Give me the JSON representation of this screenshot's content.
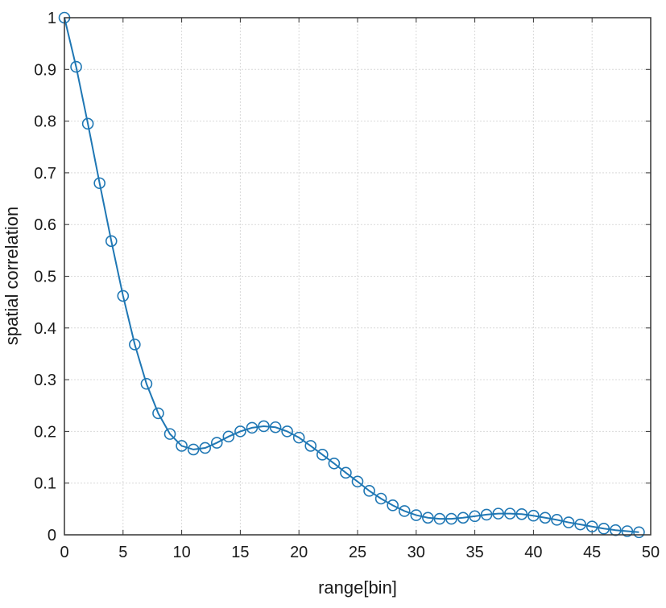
{
  "chart_data": {
    "type": "line",
    "title": "",
    "xlabel": "range[bin]",
    "ylabel": "spatial correlation",
    "xlim": [
      0,
      50
    ],
    "ylim": [
      0,
      1
    ],
    "grid": true,
    "legend": "none",
    "marker": "circle",
    "xticks": [
      0,
      5,
      10,
      15,
      20,
      25,
      30,
      35,
      40,
      45,
      50
    ],
    "yticks": [
      0,
      0.1,
      0.2,
      0.3,
      0.4,
      0.5,
      0.6,
      0.7,
      0.8,
      0.9,
      1
    ],
    "xtick_labels": [
      "0",
      "5",
      "10",
      "15",
      "20",
      "25",
      "30",
      "35",
      "40",
      "45",
      "50"
    ],
    "ytick_labels": [
      "0",
      "0.1",
      "0.2",
      "0.3",
      "0.4",
      "0.5",
      "0.6",
      "0.7",
      "0.8",
      "0.9",
      "1"
    ],
    "series": [
      {
        "color": "#1f77b4",
        "x": [
          0,
          1,
          2,
          3,
          4,
          5,
          6,
          7,
          8,
          9,
          10,
          11,
          12,
          13,
          14,
          15,
          16,
          17,
          18,
          19,
          20,
          21,
          22,
          23,
          24,
          25,
          26,
          27,
          28,
          29,
          30,
          31,
          32,
          33,
          34,
          35,
          36,
          37,
          38,
          39,
          40,
          41,
          42,
          43,
          44,
          45,
          46,
          47,
          48,
          49
        ],
        "y": [
          1.0,
          0.905,
          0.795,
          0.68,
          0.568,
          0.462,
          0.368,
          0.292,
          0.235,
          0.195,
          0.172,
          0.165,
          0.168,
          0.178,
          0.19,
          0.2,
          0.207,
          0.21,
          0.208,
          0.2,
          0.188,
          0.172,
          0.155,
          0.138,
          0.12,
          0.103,
          0.085,
          0.07,
          0.057,
          0.046,
          0.038,
          0.033,
          0.031,
          0.031,
          0.033,
          0.036,
          0.039,
          0.041,
          0.041,
          0.04,
          0.037,
          0.033,
          0.029,
          0.024,
          0.02,
          0.016,
          0.012,
          0.009,
          0.007,
          0.005
        ]
      }
    ]
  }
}
